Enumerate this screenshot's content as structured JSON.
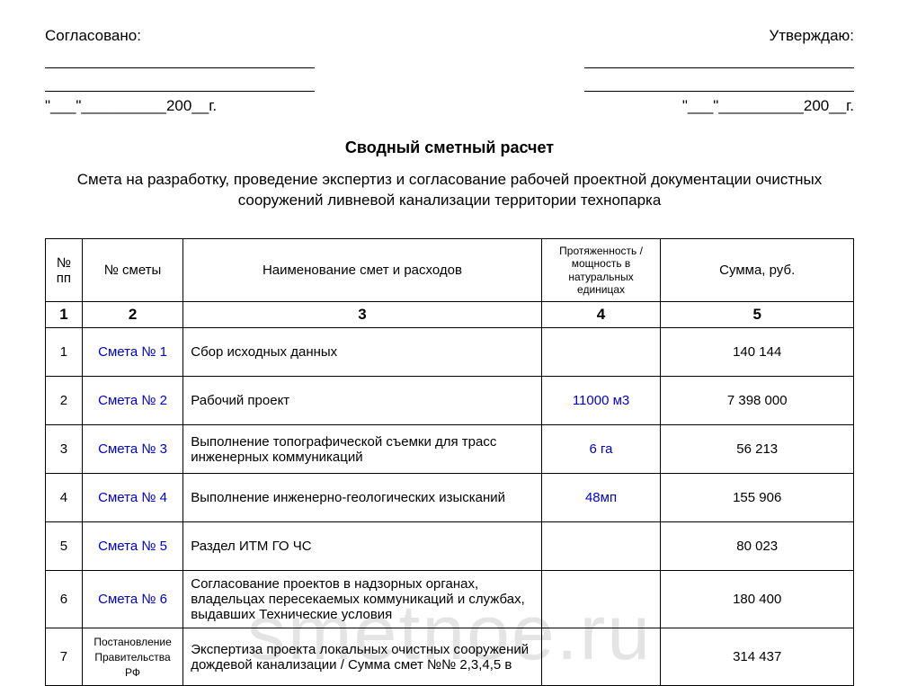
{
  "approval": {
    "left_label": "Согласовано:",
    "right_label": "Утверждаю:",
    "date_template": "\"___\"__________200__г."
  },
  "title": "Сводный сметный расчет",
  "subtitle": "Смета на разработку, проведение экспертиз и согласование рабочей проектной документации очистных сооружений ливневой канализации территории технопарка",
  "table": {
    "headers": {
      "pp": "№ пп",
      "est": "№ сметы",
      "desc": "Наименование смет и расходов",
      "qty": "Протяженность / мощность в натуральных единицах",
      "sum": "Сумма, руб."
    },
    "numrow": [
      "1",
      "2",
      "3",
      "4",
      "5"
    ],
    "rows": [
      {
        "pp": "1",
        "est": "Смета № 1",
        "desc": "Сбор исходных данных",
        "qty": "",
        "sum": "140 144"
      },
      {
        "pp": "2",
        "est": "Смета № 2",
        "desc": "Рабочий проект",
        "qty": "11000 м3",
        "sum": "7 398 000"
      },
      {
        "pp": "3",
        "est": "Смета № 3",
        "desc": "Выполнение топографической съемки для трасс инженерных коммуникаций",
        "qty": "6 га",
        "sum": "56 213"
      },
      {
        "pp": "4",
        "est": "Смета № 4",
        "desc": "Выполнение инженерно-геологических изысканий",
        "qty": "48мп",
        "sum": "155 906"
      },
      {
        "pp": "5",
        "est": "Смета № 5",
        "desc": "Раздел  ИТМ ГО ЧС",
        "qty": "",
        "sum": "80 023"
      },
      {
        "pp": "6",
        "est": "Смета № 6",
        "desc": "Согласование проектов в надзорных органах, владельцах пересекаемых коммуникаций и службах, выдавших Технические условия",
        "qty": "",
        "sum": "180 400"
      },
      {
        "pp": "7",
        "est": "Постановление Правительства РФ",
        "desc": "Экспертиза проекта локальных очистных сооружений дождевой канализации / Сумма смет №№ 2,3,4,5 в",
        "qty": "",
        "sum": "314 437"
      }
    ]
  },
  "watermark": "smetnoe.ru",
  "colors": {
    "link": "#0000cc",
    "text": "#000000",
    "bg": "#ffffff"
  }
}
